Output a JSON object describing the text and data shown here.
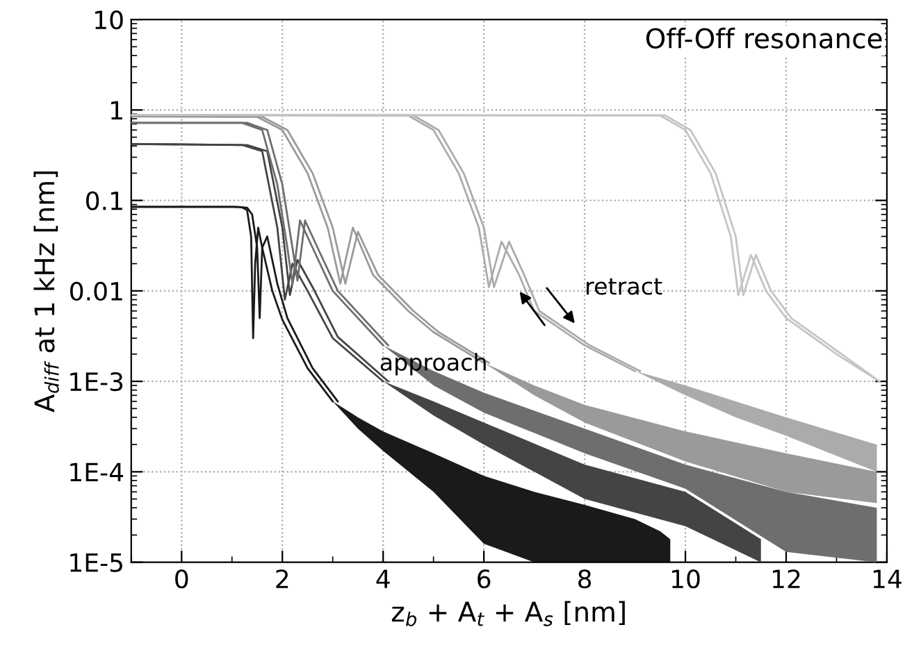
{
  "chart_data": {
    "type": "line",
    "xlabel": "z$_{b}$ + A$_{t}$ + A$_{s}$ [nm]",
    "ylabel": "A$_{diff}$ at 1 kHz [nm]",
    "log": "y",
    "grid": true,
    "marker": "none",
    "line_style": "solid",
    "xlim": [
      -1,
      14
    ],
    "xticks": [
      0,
      2,
      4,
      6,
      8,
      10,
      12,
      14
    ],
    "ylim": [
      1e-05,
      10
    ],
    "yticks": [
      {
        "value": 1e-05,
        "label": "1E-5"
      },
      {
        "value": 0.0001,
        "label": "1E-4"
      },
      {
        "value": 0.001,
        "label": "1E-3"
      },
      0.01,
      0.1,
      1,
      10
    ],
    "annotations": [
      "Off-Off resonance",
      "approach",
      "retract"
    ],
    "series": [
      {
        "color": "#1a1a1a",
        "x": [
          -1,
          1.0,
          1.2,
          1.3,
          1.38,
          1.42,
          1.46,
          1.52,
          1.6,
          1.8,
          2.0,
          2.5,
          3.0,
          3.5,
          4,
          5,
          6,
          7,
          8,
          9,
          9.5,
          9.7
        ],
        "values": [
          0.085,
          0.085,
          0.084,
          0.078,
          0.04,
          0.003,
          0.02,
          0.05,
          0.03,
          0.01,
          0.0048,
          0.0014,
          0.0006,
          null,
          null,
          null,
          null,
          null,
          null,
          null,
          null,
          null
        ],
        "lower": [
          null,
          null,
          null,
          null,
          null,
          null,
          null,
          null,
          null,
          null,
          null,
          null,
          0.0006,
          0.0003,
          0.00017,
          6e-05,
          1.6e-05,
          1e-05,
          1e-05,
          1e-05,
          1e-05,
          1e-05
        ],
        "upper": [
          null,
          null,
          null,
          null,
          null,
          null,
          null,
          null,
          null,
          null,
          null,
          null,
          0.0006,
          0.0004,
          0.00028,
          0.00016,
          9e-05,
          6e-05,
          4.3e-05,
          3e-05,
          2.2e-05,
          1.8e-05
        ]
      },
      {
        "color": "#1a1a1a",
        "x": [
          -1,
          1.1,
          1.3,
          1.4,
          1.5,
          1.55,
          1.6,
          1.7,
          1.9,
          2.1,
          2.6,
          3.1
        ],
        "values": [
          0.085,
          0.085,
          0.083,
          0.07,
          0.03,
          0.005,
          0.03,
          0.04,
          0.012,
          0.005,
          0.0014,
          0.0006
        ]
      },
      {
        "color": "#444444",
        "x": [
          -1,
          1.2,
          1.6,
          1.9,
          2.05,
          2.2,
          2.5,
          3,
          4,
          5,
          6,
          8,
          10,
          11.5
        ],
        "values": [
          0.42,
          0.41,
          0.35,
          0.05,
          0.008,
          0.02,
          0.01,
          0.003,
          0.001,
          null,
          null,
          null,
          null,
          null
        ],
        "lower": [
          null,
          null,
          null,
          null,
          null,
          null,
          null,
          null,
          0.001,
          0.00042,
          0.0002,
          5e-05,
          2.5e-05,
          1e-05
        ],
        "upper": [
          null,
          null,
          null,
          null,
          null,
          null,
          null,
          null,
          0.001,
          0.0006,
          0.00035,
          0.00012,
          6e-05,
          1.8e-05
        ]
      },
      {
        "color": "#444444",
        "x": [
          -1,
          1.3,
          1.7,
          2.0,
          2.15,
          2.3,
          2.6,
          3.1,
          4.1
        ],
        "values": [
          0.42,
          0.41,
          0.35,
          0.05,
          0.009,
          0.022,
          0.011,
          0.0031,
          0.001
        ]
      },
      {
        "color": "#6e6e6e",
        "x": [
          -1,
          1.2,
          1.6,
          1.9,
          2.1,
          2.2,
          2.35,
          2.6,
          3,
          4,
          5,
          6,
          8,
          10,
          12,
          13.8
        ],
        "values": [
          0.72,
          0.72,
          0.6,
          0.15,
          0.03,
          0.012,
          0.06,
          0.03,
          0.01,
          0.0025,
          null,
          null,
          null,
          null,
          null,
          null
        ],
        "lower": [
          null,
          null,
          null,
          null,
          null,
          null,
          null,
          null,
          null,
          0.0025,
          0.0009,
          0.00045,
          0.00016,
          6.5e-05,
          1.3e-05,
          1e-05
        ],
        "upper": [
          null,
          null,
          null,
          null,
          null,
          null,
          null,
          null,
          null,
          0.0025,
          0.0013,
          0.00075,
          0.0003,
          0.00012,
          6e-05,
          4e-05
        ]
      },
      {
        "color": "#6e6e6e",
        "x": [
          -1,
          1.3,
          1.7,
          2.0,
          2.2,
          2.3,
          2.45,
          2.7,
          3.1,
          4.1
        ],
        "values": [
          0.72,
          0.72,
          0.6,
          0.15,
          0.03,
          0.013,
          0.06,
          0.03,
          0.01,
          0.0025
        ]
      },
      {
        "color": "#9a9a9a",
        "x": [
          -1,
          1.5,
          2,
          2.5,
          2.9,
          3.15,
          3.4,
          3.8,
          4.5,
          5,
          6,
          7,
          8,
          10,
          12,
          13.8
        ],
        "values": [
          0.85,
          0.84,
          0.6,
          0.2,
          0.05,
          0.012,
          0.05,
          0.015,
          0.006,
          0.0035,
          0.0016,
          null,
          null,
          null,
          null,
          null
        ],
        "lower": [
          null,
          null,
          null,
          null,
          null,
          null,
          null,
          null,
          null,
          null,
          0.0016,
          0.0007,
          0.00035,
          0.00013,
          6e-05,
          4.5e-05
        ],
        "upper": [
          null,
          null,
          null,
          null,
          null,
          null,
          null,
          null,
          null,
          null,
          0.0016,
          0.0009,
          0.00055,
          0.00028,
          0.00016,
          0.0001
        ]
      },
      {
        "color": "#9a9a9a",
        "x": [
          -1,
          1.6,
          2.1,
          2.6,
          3.0,
          3.25,
          3.5,
          3.9,
          4.6,
          5.1,
          6.1
        ],
        "values": [
          0.85,
          0.84,
          0.6,
          0.2,
          0.05,
          0.012,
          0.045,
          0.015,
          0.006,
          0.0035,
          0.0016
        ]
      },
      {
        "color": "#ababab",
        "x": [
          -1,
          4.5,
          5,
          5.5,
          5.9,
          6.1,
          6.35,
          6.7,
          7,
          8,
          9,
          10,
          11,
          12,
          13.8
        ],
        "values": [
          0.88,
          0.87,
          0.6,
          0.2,
          0.05,
          0.011,
          0.035,
          0.015,
          0.006,
          0.0025,
          0.0013,
          null,
          null,
          null,
          null
        ],
        "lower": [
          null,
          null,
          null,
          null,
          null,
          null,
          null,
          null,
          null,
          null,
          0.0013,
          0.0007,
          0.0004,
          0.00025,
          0.0001
        ],
        "upper": [
          null,
          null,
          null,
          null,
          null,
          null,
          null,
          null,
          null,
          null,
          0.0013,
          0.0009,
          0.0006,
          0.0004,
          0.0002
        ]
      },
      {
        "color": "#ababab",
        "x": [
          -1,
          4.6,
          5.1,
          5.6,
          6.0,
          6.2,
          6.5,
          6.8,
          7.1,
          8.1,
          9.1
        ],
        "values": [
          0.88,
          0.87,
          0.6,
          0.2,
          0.05,
          0.011,
          0.035,
          0.015,
          0.006,
          0.0025,
          0.0013
        ]
      },
      {
        "color": "#c4c4c4",
        "x": [
          -1,
          9.5,
          10,
          10.5,
          10.9,
          11.05,
          11.3,
          11.6,
          12,
          13,
          13.85
        ],
        "values": [
          0.88,
          0.87,
          0.6,
          0.2,
          0.04,
          0.009,
          0.025,
          0.01,
          0.005,
          0.002,
          0.001
        ]
      },
      {
        "color": "#c4c4c4",
        "x": [
          -1,
          9.6,
          10.1,
          10.6,
          11.0,
          11.15,
          11.4,
          11.7,
          12.1,
          13.1,
          13.85
        ],
        "values": [
          0.88,
          0.87,
          0.6,
          0.2,
          0.04,
          0.009,
          0.025,
          0.01,
          0.005,
          0.002,
          0.001
        ]
      }
    ]
  }
}
